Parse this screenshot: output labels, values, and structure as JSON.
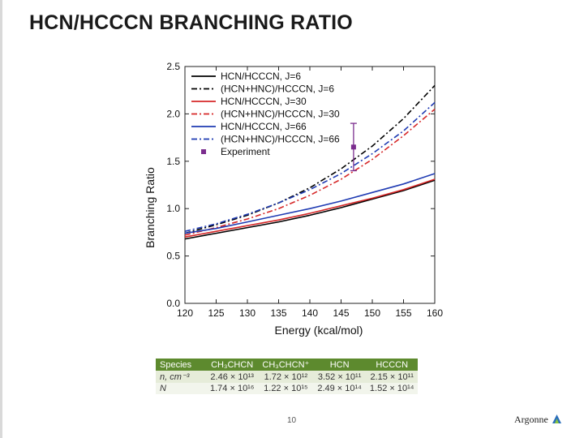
{
  "slide": {
    "title": "HCN/HCCCN BRANCHING RATIO",
    "page_number": "10",
    "logo_text": "Argonne"
  },
  "chart_data": {
    "type": "line",
    "xlabel": "Energy (kcal/mol)",
    "ylabel": "Branching Ratio",
    "xlim": [
      120,
      160
    ],
    "ylim": [
      0,
      2.5
    ],
    "xticks": [
      120,
      125,
      130,
      135,
      140,
      145,
      150,
      155,
      160
    ],
    "yticks": [
      0.0,
      0.5,
      1.0,
      1.5,
      2.0,
      2.5
    ],
    "tick_labels_y": [
      "0.0",
      "0.5",
      "1.0",
      "1.5",
      "2.0",
      "2.5"
    ],
    "legend_position": "top-left",
    "x": [
      120,
      125,
      130,
      135,
      140,
      145,
      150,
      155,
      160
    ],
    "series": [
      {
        "name": "HCN/HCCCN, J=6",
        "color": "#000000",
        "style": "solid",
        "values": [
          0.68,
          0.74,
          0.8,
          0.86,
          0.93,
          1.01,
          1.1,
          1.19,
          1.3
        ]
      },
      {
        "name": "(HCN+HNC)/HCCCN, J=6",
        "color": "#000000",
        "style": "dashdot",
        "values": [
          0.74,
          0.83,
          0.93,
          1.06,
          1.22,
          1.42,
          1.66,
          1.95,
          2.3
        ]
      },
      {
        "name": "HCN/HCCCN, J=30",
        "color": "#d62728",
        "style": "solid",
        "values": [
          0.7,
          0.76,
          0.82,
          0.88,
          0.95,
          1.03,
          1.11,
          1.2,
          1.31
        ]
      },
      {
        "name": "(HCN+HNC)/HCCCN, J=30",
        "color": "#d62728",
        "style": "dashdot",
        "values": [
          0.72,
          0.8,
          0.89,
          1.0,
          1.14,
          1.31,
          1.52,
          1.77,
          2.05
        ]
      },
      {
        "name": "HCN/HCCCN, J=66",
        "color": "#1f3bb3",
        "style": "solid",
        "values": [
          0.74,
          0.79,
          0.86,
          0.93,
          1.0,
          1.08,
          1.17,
          1.26,
          1.37
        ]
      },
      {
        "name": "(HCN+HNC)/HCCCN, J=66",
        "color": "#1f3bb3",
        "style": "dashdot",
        "values": [
          0.76,
          0.84,
          0.94,
          1.06,
          1.2,
          1.37,
          1.58,
          1.82,
          2.12
        ]
      }
    ],
    "experiment": {
      "name": "Experiment",
      "color": "#7b2d8e",
      "x": 147,
      "y": 1.65,
      "err": 0.25
    }
  },
  "table": {
    "headers": [
      "Species",
      "CH₃CHCN",
      "CH₃CHCN⁺",
      "HCN",
      "HCCCN"
    ],
    "rows": [
      [
        "n, cm⁻³",
        "2.46 × 10¹³",
        "1.72 × 10¹²",
        "3.52 × 10¹¹",
        "2.15 × 10¹¹"
      ],
      [
        "N",
        "1.74 × 10¹⁶",
        "1.22 × 10¹⁵",
        "2.49 × 10¹⁴",
        "1.52 × 10¹⁴"
      ]
    ]
  }
}
